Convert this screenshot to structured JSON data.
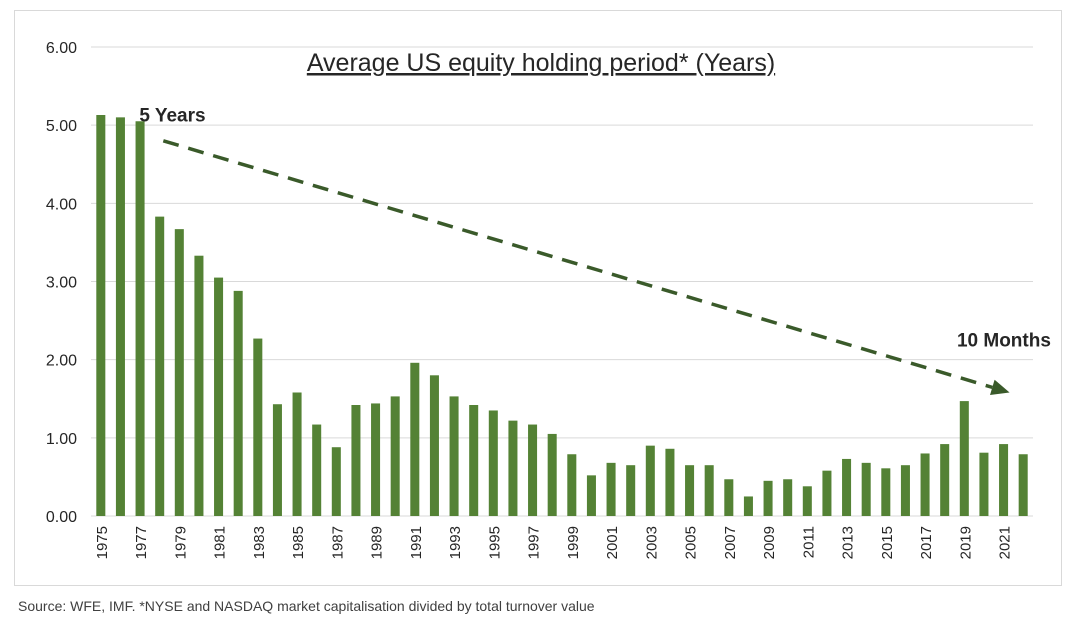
{
  "chart_data": {
    "type": "bar",
    "title": "Average US equity holding period* (Years)",
    "xlabel": "",
    "ylabel": "",
    "ylim": [
      0,
      6
    ],
    "yticks": [
      "0.00",
      "1.00",
      "2.00",
      "3.00",
      "4.00",
      "5.00",
      "6.00"
    ],
    "grid": true,
    "bar_color": "#548235",
    "arrow_color": "#3a5a2a",
    "categories": [
      "1975",
      "1976",
      "1977",
      "1978",
      "1979",
      "1980",
      "1981",
      "1982",
      "1983",
      "1984",
      "1985",
      "1986",
      "1987",
      "1988",
      "1989",
      "1990",
      "1991",
      "1992",
      "1993",
      "1994",
      "1995",
      "1996",
      "1997",
      "1998",
      "1999",
      "2000",
      "2001",
      "2002",
      "2003",
      "2004",
      "2005",
      "2006",
      "2007",
      "2008",
      "2009",
      "2010",
      "2011",
      "2012",
      "2013",
      "2014",
      "2015",
      "2016",
      "2017",
      "2018",
      "2019",
      "2020",
      "2021",
      "2022"
    ],
    "xtick_labels": [
      "1975",
      "1977",
      "1979",
      "1981",
      "1983",
      "1985",
      "1987",
      "1989",
      "1991",
      "1993",
      "1995",
      "1997",
      "1999",
      "2001",
      "2003",
      "2005",
      "2007",
      "2009",
      "2011",
      "2013",
      "2015",
      "2017",
      "2019",
      "2021"
    ],
    "values": [
      5.13,
      5.1,
      5.05,
      3.83,
      3.67,
      3.33,
      3.05,
      2.88,
      2.27,
      1.43,
      1.58,
      1.17,
      0.88,
      1.42,
      1.44,
      1.53,
      1.96,
      1.8,
      1.53,
      1.42,
      1.35,
      1.22,
      1.17,
      1.05,
      0.79,
      0.52,
      0.68,
      0.65,
      0.9,
      0.86,
      0.65,
      0.65,
      0.47,
      0.25,
      0.45,
      0.47,
      0.38,
      0.58,
      0.73,
      0.68,
      0.61,
      0.65,
      0.8,
      0.92,
      1.47,
      0.81,
      0.92,
      0.79
    ],
    "annotations": [
      {
        "text": "5 Years",
        "near_category": "1979"
      },
      {
        "text": "10 Months",
        "near_category": "2020"
      }
    ],
    "trend_arrow": {
      "from": {
        "category": "1979",
        "value": 4.8
      },
      "to": {
        "category": "2021",
        "value": 1.58
      }
    }
  },
  "source": "Source: WFE, IMF. *NYSE and NASDAQ market capitalisation divided by total turnover value"
}
